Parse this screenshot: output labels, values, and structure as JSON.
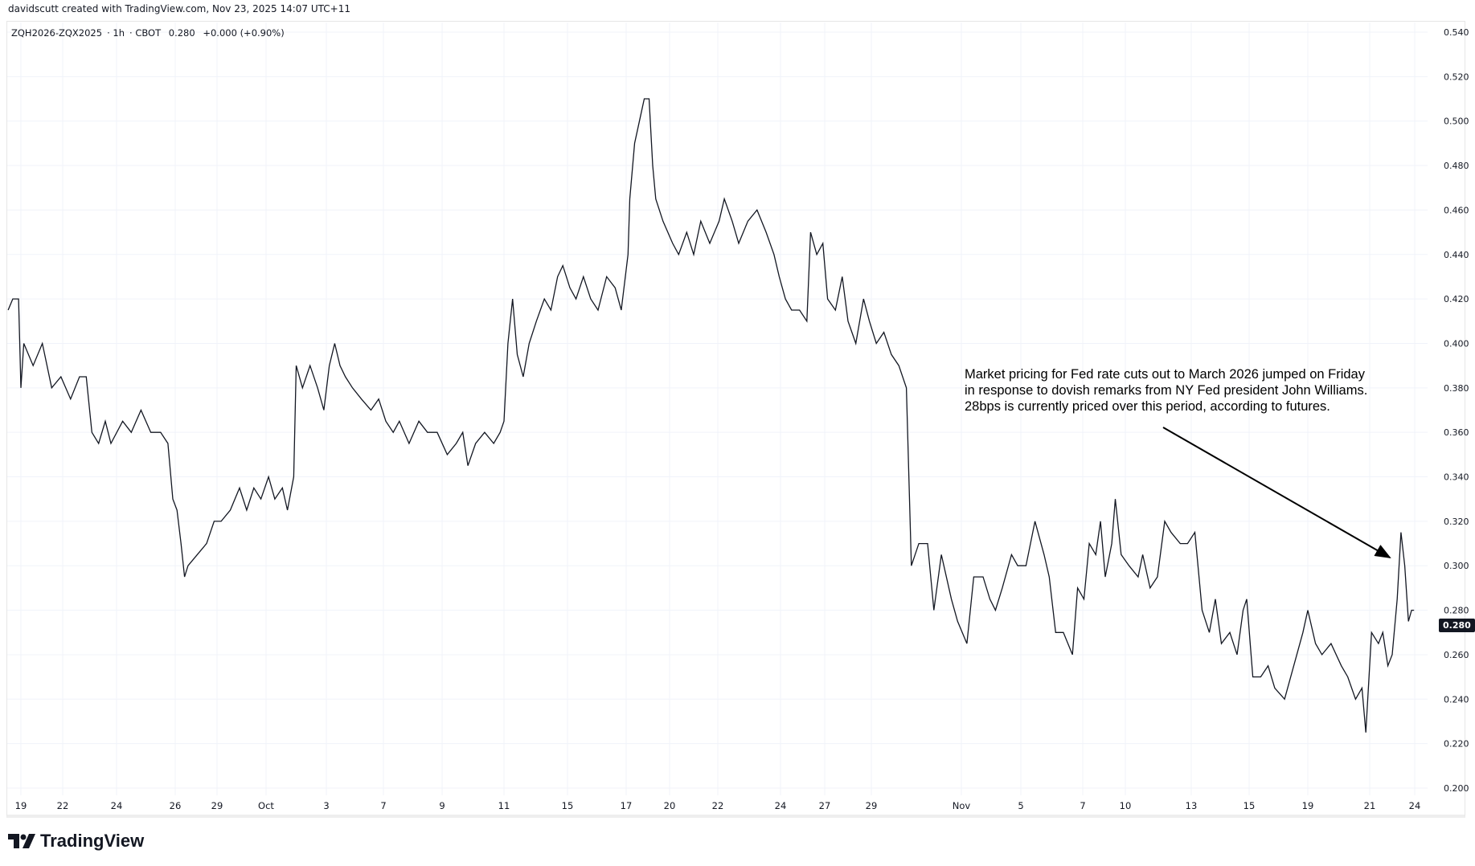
{
  "header": {
    "credit": "davidscutt created with TradingView.com, Nov 23, 2025 14:07 UTC+11",
    "symbol": "ZQH2026-ZQX2025",
    "interval": "1h",
    "exchange": "CBOT",
    "last": "0.280",
    "change": "+0.000 (+0.90%)"
  },
  "price_tag": "0.280",
  "annotation": "Market pricing for Fed rate cuts out to March 2026 jumped on Friday\nin response to dovish remarks from NY Fed president John Williams.\n28bps is currently priced over this period, according to futures.",
  "logo_text": "TradingView",
  "colors": {
    "line": "#131722",
    "grid": "#f0f3fa",
    "price_tag_bg": "#131722"
  },
  "chart_data": {
    "type": "line",
    "title": "",
    "xlabel": "",
    "ylabel": "",
    "ylim": [
      0.2,
      0.54
    ],
    "grid": true,
    "yticks": [
      "0.540",
      "0.520",
      "0.500",
      "0.480",
      "0.460",
      "0.440",
      "0.420",
      "0.400",
      "0.380",
      "0.360",
      "0.340",
      "0.320",
      "0.300",
      "0.280",
      "0.260",
      "0.240",
      "0.220",
      "0.200"
    ],
    "xticks": [
      "19",
      "22",
      "24",
      "26",
      "29",
      "Oct",
      "3",
      "7",
      "9",
      "11",
      "15",
      "17",
      "20",
      "22",
      "24",
      "27",
      "29",
      "Nov",
      "5",
      "7",
      "10",
      "13",
      "15",
      "19",
      "21",
      "24"
    ],
    "series": [
      {
        "points": [
          [
            "2025-09-18T02:00",
            0.415
          ],
          [
            "2025-09-18T10:00",
            0.42
          ],
          [
            "2025-09-18T20:00",
            0.42
          ],
          [
            "2025-09-19T00:00",
            0.38
          ],
          [
            "2025-09-19T05:00",
            0.4
          ],
          [
            "2025-09-19T21:00",
            0.39
          ],
          [
            "2025-09-20T13:00",
            0.4
          ],
          [
            "2025-09-21T05:00",
            0.38
          ],
          [
            "2025-09-21T21:00",
            0.385
          ],
          [
            "2025-09-22T07:00",
            0.375
          ],
          [
            "2025-09-22T15:00",
            0.385
          ],
          [
            "2025-09-22T21:00",
            0.385
          ],
          [
            "2025-09-23T02:00",
            0.36
          ],
          [
            "2025-09-23T08:00",
            0.355
          ],
          [
            "2025-09-23T14:00",
            0.365
          ],
          [
            "2025-09-23T19:00",
            0.355
          ],
          [
            "2025-09-24T05:00",
            0.365
          ],
          [
            "2025-09-24T12:00",
            0.36
          ],
          [
            "2025-09-24T20:00",
            0.37
          ],
          [
            "2025-09-25T04:00",
            0.36
          ],
          [
            "2025-09-25T12:00",
            0.36
          ],
          [
            "2025-09-25T18:00",
            0.355
          ],
          [
            "2025-09-25T22:00",
            0.33
          ],
          [
            "2025-09-26T03:00",
            0.325
          ],
          [
            "2025-09-26T10:00",
            0.31
          ],
          [
            "2025-09-26T16:00",
            0.295
          ],
          [
            "2025-09-26T22:00",
            0.3
          ],
          [
            "2025-09-27T14:00",
            0.305
          ],
          [
            "2025-09-28T06:00",
            0.31
          ],
          [
            "2025-09-28T19:00",
            0.32
          ],
          [
            "2025-09-29T04:00",
            0.32
          ],
          [
            "2025-09-29T13:00",
            0.325
          ],
          [
            "2025-09-29T22:00",
            0.335
          ],
          [
            "2025-09-30T05:00",
            0.325
          ],
          [
            "2025-09-30T12:00",
            0.335
          ],
          [
            "2025-09-30T19:00",
            0.33
          ],
          [
            "2025-10-01T02:00",
            0.34
          ],
          [
            "2025-10-01T07:00",
            0.33
          ],
          [
            "2025-10-01T13:00",
            0.335
          ],
          [
            "2025-10-01T17:00",
            0.325
          ],
          [
            "2025-10-01T22:00",
            0.34
          ],
          [
            "2025-10-02T00:00",
            0.39
          ],
          [
            "2025-10-02T05:00",
            0.38
          ],
          [
            "2025-10-02T11:00",
            0.39
          ],
          [
            "2025-10-02T17:00",
            0.38
          ],
          [
            "2025-10-02T22:00",
            0.37
          ],
          [
            "2025-10-03T05:00",
            0.39
          ],
          [
            "2025-10-03T14:00",
            0.4
          ],
          [
            "2025-10-03T23:00",
            0.39
          ],
          [
            "2025-10-04T08:00",
            0.385
          ],
          [
            "2025-10-04T20:00",
            0.38
          ],
          [
            "2025-10-05T11:00",
            0.375
          ],
          [
            "2025-10-06T03:00",
            0.37
          ],
          [
            "2025-10-06T16:00",
            0.375
          ],
          [
            "2025-10-07T02:00",
            0.365
          ],
          [
            "2025-10-07T08:00",
            0.36
          ],
          [
            "2025-10-07T13:00",
            0.365
          ],
          [
            "2025-10-07T21:00",
            0.355
          ],
          [
            "2025-10-08T05:00",
            0.365
          ],
          [
            "2025-10-08T12:00",
            0.36
          ],
          [
            "2025-10-08T20:00",
            0.36
          ],
          [
            "2025-10-09T04:00",
            0.35
          ],
          [
            "2025-10-09T11:00",
            0.355
          ],
          [
            "2025-10-09T16:00",
            0.36
          ],
          [
            "2025-10-09T20:00",
            0.345
          ],
          [
            "2025-10-10T02:00",
            0.355
          ],
          [
            "2025-10-10T09:00",
            0.36
          ],
          [
            "2025-10-10T16:00",
            0.355
          ],
          [
            "2025-10-10T21:00",
            0.36
          ],
          [
            "2025-10-11T00:00",
            0.365
          ],
          [
            "2025-10-11T06:00",
            0.4
          ],
          [
            "2025-10-11T13:00",
            0.42
          ],
          [
            "2025-10-11T20:00",
            0.395
          ],
          [
            "2025-10-12T05:00",
            0.385
          ],
          [
            "2025-10-12T14:00",
            0.4
          ],
          [
            "2025-10-13T01:00",
            0.41
          ],
          [
            "2025-10-13T13:00",
            0.42
          ],
          [
            "2025-10-13T23:00",
            0.415
          ],
          [
            "2025-10-14T09:00",
            0.43
          ],
          [
            "2025-10-14T17:00",
            0.435
          ],
          [
            "2025-10-15T02:00",
            0.425
          ],
          [
            "2025-10-15T07:00",
            0.42
          ],
          [
            "2025-10-15T13:00",
            0.43
          ],
          [
            "2025-10-15T19:00",
            0.42
          ],
          [
            "2025-10-16T01:00",
            0.415
          ],
          [
            "2025-10-16T08:00",
            0.43
          ],
          [
            "2025-10-16T15:00",
            0.425
          ],
          [
            "2025-10-16T20:00",
            0.415
          ],
          [
            "2025-10-17T03:00",
            0.44
          ],
          [
            "2025-10-17T06:00",
            0.465
          ],
          [
            "2025-10-17T14:00",
            0.49
          ],
          [
            "2025-10-17T22:00",
            0.5
          ],
          [
            "2025-10-18T06:00",
            0.51
          ],
          [
            "2025-10-18T14:00",
            0.51
          ],
          [
            "2025-10-18T20:00",
            0.48
          ],
          [
            "2025-10-19T01:00",
            0.465
          ],
          [
            "2025-10-19T13:00",
            0.455
          ],
          [
            "2025-10-20T03:00",
            0.445
          ],
          [
            "2025-10-20T09:00",
            0.44
          ],
          [
            "2025-10-20T17:00",
            0.45
          ],
          [
            "2025-10-21T00:00",
            0.44
          ],
          [
            "2025-10-21T07:00",
            0.455
          ],
          [
            "2025-10-21T16:00",
            0.445
          ],
          [
            "2025-10-22T01:00",
            0.455
          ],
          [
            "2025-10-22T05:00",
            0.465
          ],
          [
            "2025-10-22T11:00",
            0.455
          ],
          [
            "2025-10-22T16:00",
            0.445
          ],
          [
            "2025-10-22T23:00",
            0.455
          ],
          [
            "2025-10-23T06:00",
            0.46
          ],
          [
            "2025-10-23T13:00",
            0.45
          ],
          [
            "2025-10-23T19:00",
            0.44
          ],
          [
            "2025-10-23T23:00",
            0.43
          ],
          [
            "2025-10-24T08:00",
            0.42
          ],
          [
            "2025-10-24T18:00",
            0.415
          ],
          [
            "2025-10-25T07:00",
            0.415
          ],
          [
            "2025-10-25T19:00",
            0.41
          ],
          [
            "2025-10-26T01:00",
            0.45
          ],
          [
            "2025-10-26T11:00",
            0.44
          ],
          [
            "2025-10-26T21:00",
            0.445
          ],
          [
            "2025-10-27T03:00",
            0.42
          ],
          [
            "2025-10-27T11:00",
            0.415
          ],
          [
            "2025-10-27T18:00",
            0.43
          ],
          [
            "2025-10-28T00:00",
            0.41
          ],
          [
            "2025-10-28T08:00",
            0.4
          ],
          [
            "2025-10-28T16:00",
            0.42
          ],
          [
            "2025-10-28T22:00",
            0.41
          ],
          [
            "2025-10-29T04:00",
            0.4
          ],
          [
            "2025-10-29T10:00",
            0.405
          ],
          [
            "2025-10-29T16:00",
            0.395
          ],
          [
            "2025-10-29T22:00",
            0.39
          ],
          [
            "2025-10-30T04:00",
            0.38
          ],
          [
            "2025-10-30T06:00",
            0.34
          ],
          [
            "2025-10-30T08:00",
            0.3
          ],
          [
            "2025-10-30T14:00",
            0.31
          ],
          [
            "2025-10-30T21:00",
            0.31
          ],
          [
            "2025-10-31T02:00",
            0.28
          ],
          [
            "2025-10-31T08:00",
            0.305
          ],
          [
            "2025-10-31T16:00",
            0.285
          ],
          [
            "2025-10-31T21:00",
            0.275
          ],
          [
            "2025-11-01T09:00",
            0.265
          ],
          [
            "2025-11-01T20:00",
            0.295
          ],
          [
            "2025-11-02T11:00",
            0.295
          ],
          [
            "2025-11-02T22:00",
            0.285
          ],
          [
            "2025-11-03T07:00",
            0.28
          ],
          [
            "2025-11-03T18:00",
            0.29
          ],
          [
            "2025-11-04T09:00",
            0.305
          ],
          [
            "2025-11-04T19:00",
            0.3
          ],
          [
            "2025-11-05T04:00",
            0.3
          ],
          [
            "2025-11-05T11:00",
            0.32
          ],
          [
            "2025-11-05T18:00",
            0.305
          ],
          [
            "2025-11-05T22:00",
            0.295
          ],
          [
            "2025-11-06T03:00",
            0.27
          ],
          [
            "2025-11-06T09:00",
            0.27
          ],
          [
            "2025-11-06T16:00",
            0.26
          ],
          [
            "2025-11-06T20:00",
            0.29
          ],
          [
            "2025-11-07T02:00",
            0.285
          ],
          [
            "2025-11-07T11:00",
            0.31
          ],
          [
            "2025-11-07T22:00",
            0.305
          ],
          [
            "2025-11-08T06:00",
            0.32
          ],
          [
            "2025-11-08T14:00",
            0.295
          ],
          [
            "2025-11-09T01:00",
            0.31
          ],
          [
            "2025-11-09T07:00",
            0.33
          ],
          [
            "2025-11-09T17:00",
            0.305
          ],
          [
            "2025-11-10T04:00",
            0.3
          ],
          [
            "2025-11-10T14:00",
            0.295
          ],
          [
            "2025-11-10T19:00",
            0.305
          ],
          [
            "2025-11-11T03:00",
            0.29
          ],
          [
            "2025-11-11T11:00",
            0.295
          ],
          [
            "2025-11-11T19:00",
            0.32
          ],
          [
            "2025-11-12T02:00",
            0.315
          ],
          [
            "2025-11-12T12:00",
            0.31
          ],
          [
            "2025-11-12T20:00",
            0.31
          ],
          [
            "2025-11-13T03:00",
            0.315
          ],
          [
            "2025-11-13T09:00",
            0.28
          ],
          [
            "2025-11-13T15:00",
            0.27
          ],
          [
            "2025-11-13T20:00",
            0.285
          ],
          [
            "2025-11-14T01:00",
            0.265
          ],
          [
            "2025-11-14T08:00",
            0.27
          ],
          [
            "2025-11-14T14:00",
            0.26
          ],
          [
            "2025-11-14T19:00",
            0.28
          ],
          [
            "2025-11-14T22:00",
            0.285
          ],
          [
            "2025-11-15T06:00",
            0.25
          ],
          [
            "2025-11-15T19:00",
            0.25
          ],
          [
            "2025-11-16T07:00",
            0.255
          ],
          [
            "2025-11-16T18:00",
            0.245
          ],
          [
            "2025-11-17T10:00",
            0.24
          ],
          [
            "2025-11-18T01:00",
            0.255
          ],
          [
            "2025-11-18T16:00",
            0.27
          ],
          [
            "2025-11-19T00:00",
            0.28
          ],
          [
            "2025-11-19T06:00",
            0.265
          ],
          [
            "2025-11-19T11:00",
            0.26
          ],
          [
            "2025-11-19T18:00",
            0.265
          ],
          [
            "2025-11-20T02:00",
            0.255
          ],
          [
            "2025-11-20T07:00",
            0.25
          ],
          [
            "2025-11-20T13:00",
            0.24
          ],
          [
            "2025-11-20T18:00",
            0.245
          ],
          [
            "2025-11-20T21:00",
            0.225
          ],
          [
            "2025-11-21T03:00",
            0.27
          ],
          [
            "2025-11-21T14:00",
            0.265
          ],
          [
            "2025-11-21T21:00",
            0.27
          ],
          [
            "2025-11-22T05:00",
            0.255
          ],
          [
            "2025-11-22T12:00",
            0.26
          ],
          [
            "2025-11-22T20:00",
            0.285
          ],
          [
            "2025-11-23T02:00",
            0.315
          ],
          [
            "2025-11-23T08:00",
            0.3
          ],
          [
            "2025-11-23T14:00",
            0.275
          ],
          [
            "2025-11-23T19:00",
            0.28
          ],
          [
            "2025-11-23T23:00",
            0.28
          ]
        ]
      }
    ]
  }
}
